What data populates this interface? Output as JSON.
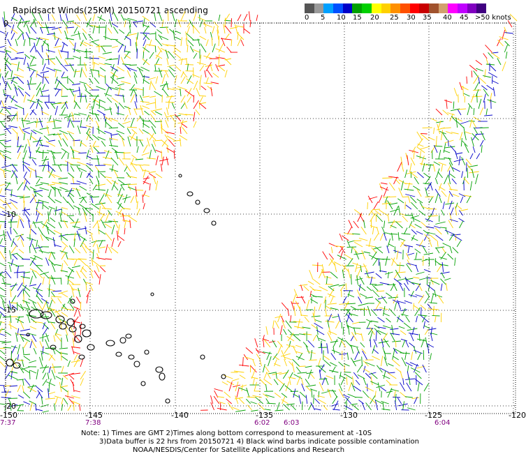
{
  "title": "Rapidsact Winds(25KM) 20150721 ascending",
  "colorbar": {
    "colors": [
      "#555555",
      "#9a9a9a",
      "#00a0ff",
      "#0050ff",
      "#0000c8",
      "#00a000",
      "#00d000",
      "#ffff00",
      "#ffd000",
      "#ff9000",
      "#ff5000",
      "#ff0000",
      "#c80000",
      "#a0522d",
      "#d2a06e",
      "#ff00ff",
      "#c000ff",
      "#8000c0",
      "#400080"
    ],
    "labels": [
      "0",
      "5",
      "10",
      "15",
      "20",
      "25",
      "30",
      "35",
      "40",
      "45",
      ">50 knots"
    ]
  },
  "axes": {
    "x_ticks": [
      "-150",
      "-145",
      "-140",
      "-135",
      "-130",
      "-125",
      "-120"
    ],
    "y_ticks": [
      "0",
      "-5",
      "-10",
      "-15",
      "-20"
    ]
  },
  "times": [
    "7:37",
    "7:38",
    "6:02",
    "6:03",
    "6:04"
  ],
  "notes": {
    "line1": "Note: 1) Times are GMT 2)Times along bottom correspond to measurement at -10S",
    "line2": "3)Data buffer is 22 hrs from 20150721 4) Black wind barbs indicate possible contamination",
    "line3": "NOAA/NESDIS/Center for Satellite Applications and Research"
  },
  "palette": {
    "low": "#0000c8",
    "mid": "#00a000",
    "high": "#ffd000",
    "edge": "#ff0000"
  }
}
